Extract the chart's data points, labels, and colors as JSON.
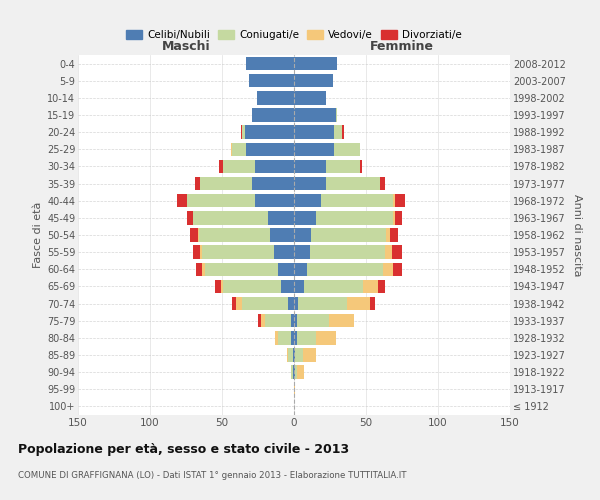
{
  "age_groups": [
    "100+",
    "95-99",
    "90-94",
    "85-89",
    "80-84",
    "75-79",
    "70-74",
    "65-69",
    "60-64",
    "55-59",
    "50-54",
    "45-49",
    "40-44",
    "35-39",
    "30-34",
    "25-29",
    "20-24",
    "15-19",
    "10-14",
    "5-9",
    "0-4"
  ],
  "birth_years": [
    "≤ 1912",
    "1913-1917",
    "1918-1922",
    "1923-1927",
    "1928-1932",
    "1933-1937",
    "1938-1942",
    "1943-1947",
    "1948-1952",
    "1953-1957",
    "1958-1962",
    "1963-1967",
    "1968-1972",
    "1973-1977",
    "1978-1982",
    "1983-1987",
    "1988-1992",
    "1993-1997",
    "1998-2002",
    "2003-2007",
    "2008-2012"
  ],
  "colors": {
    "celibi": "#4f7db3",
    "coniugati": "#c5d9a0",
    "vedovi": "#f5c87a",
    "divorziati": "#d93030"
  },
  "maschi": {
    "celibi": [
      0,
      0,
      1,
      1,
      2,
      2,
      4,
      9,
      11,
      14,
      17,
      18,
      27,
      29,
      27,
      33,
      34,
      29,
      26,
      31,
      33
    ],
    "coniugati": [
      0,
      0,
      1,
      3,
      9,
      18,
      32,
      40,
      51,
      50,
      49,
      52,
      47,
      36,
      22,
      10,
      2,
      0,
      0,
      0,
      0
    ],
    "vedovi": [
      0,
      0,
      0,
      1,
      2,
      3,
      4,
      2,
      2,
      1,
      1,
      0,
      0,
      0,
      0,
      1,
      0,
      0,
      0,
      0,
      0
    ],
    "divorziati": [
      0,
      0,
      0,
      0,
      0,
      2,
      3,
      4,
      4,
      5,
      5,
      4,
      7,
      4,
      3,
      0,
      1,
      0,
      0,
      0,
      0
    ]
  },
  "femmine": {
    "celibi": [
      0,
      0,
      1,
      1,
      2,
      2,
      3,
      7,
      9,
      11,
      12,
      15,
      19,
      22,
      22,
      28,
      28,
      29,
      22,
      27,
      30
    ],
    "coniugati": [
      0,
      0,
      1,
      5,
      13,
      22,
      34,
      41,
      53,
      52,
      52,
      54,
      50,
      38,
      24,
      18,
      5,
      1,
      0,
      0,
      0
    ],
    "vedovi": [
      0,
      1,
      5,
      9,
      14,
      18,
      16,
      10,
      7,
      5,
      3,
      1,
      1,
      0,
      0,
      0,
      0,
      0,
      0,
      0,
      0
    ],
    "divorziati": [
      0,
      0,
      0,
      0,
      0,
      0,
      3,
      5,
      6,
      7,
      5,
      5,
      7,
      3,
      1,
      0,
      2,
      0,
      0,
      0,
      0
    ]
  },
  "xlim": 150,
  "title": "Popolazione per età, sesso e stato civile - 2013",
  "subtitle": "COMUNE DI GRAFFIGNANA (LO) - Dati ISTAT 1° gennaio 2013 - Elaborazione TUTTITALIA.IT",
  "ylabel_left": "Fasce di età",
  "ylabel_right": "Anni di nascita",
  "xlabel_maschi": "Maschi",
  "xlabel_femmine": "Femmine",
  "legend_labels": [
    "Celibi/Nubili",
    "Coniugati/e",
    "Vedovi/e",
    "Divorziati/e"
  ],
  "bg_color": "#f0f0f0",
  "plot_bg_color": "#ffffff",
  "grid_color": "#cccccc"
}
